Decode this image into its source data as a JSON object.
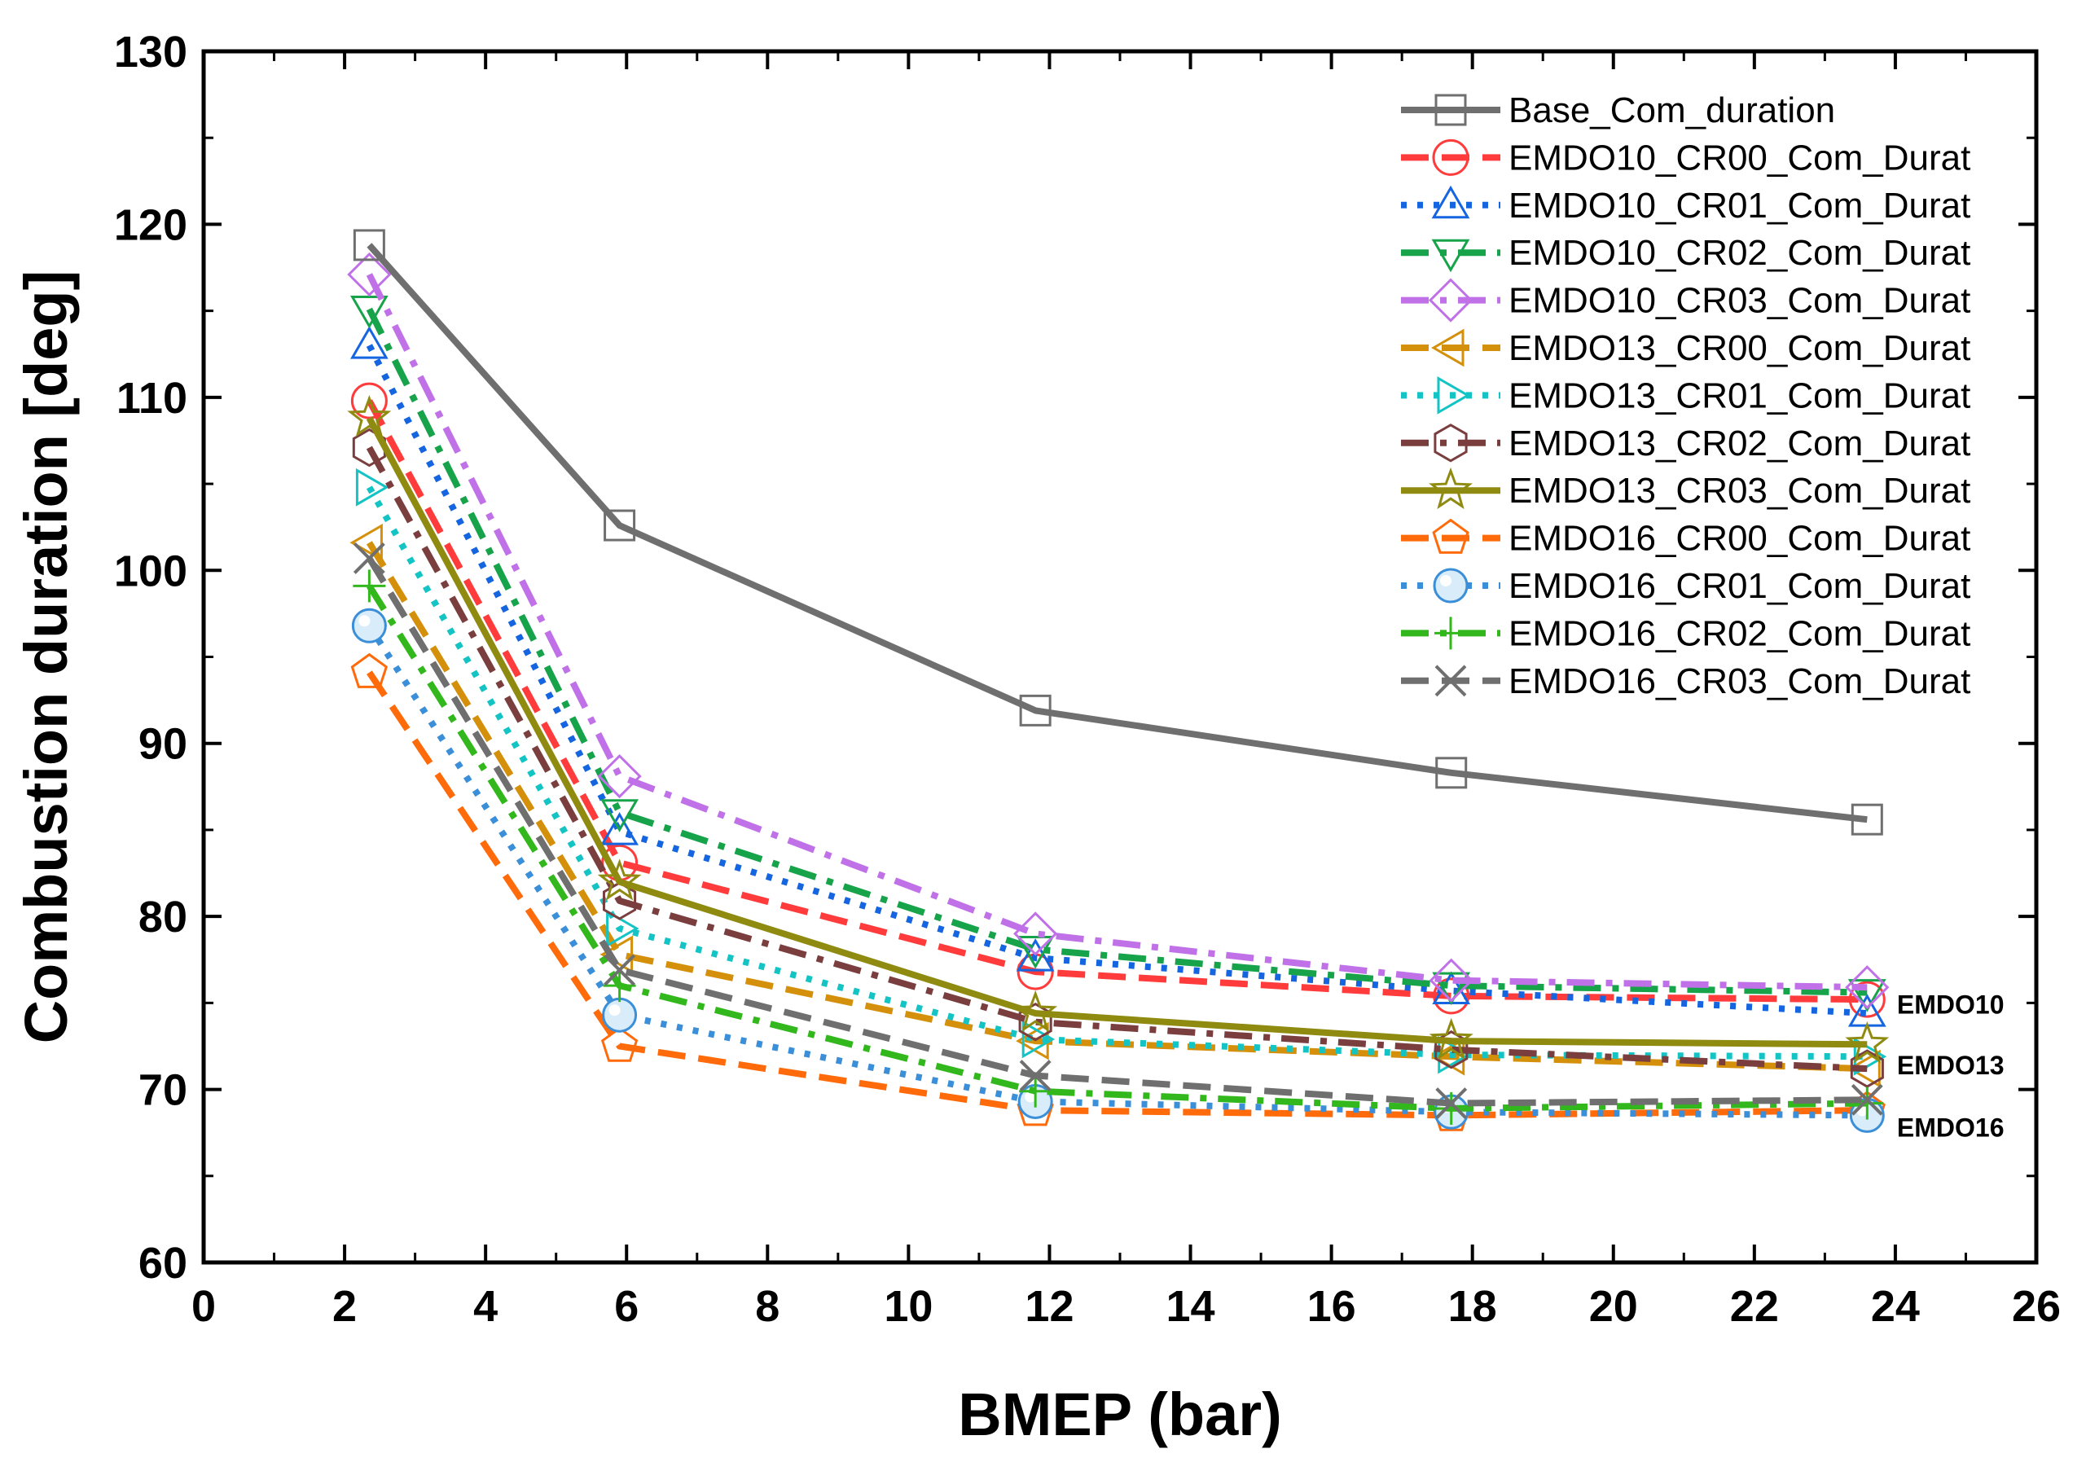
{
  "chart_data": {
    "type": "line",
    "title": "",
    "xlabel": "BMEP (bar)",
    "ylabel": "Combustion duration [deg]",
    "xlim": [
      0,
      26
    ],
    "ylim": [
      60,
      130
    ],
    "xticks": [
      0,
      2,
      4,
      6,
      8,
      10,
      12,
      14,
      16,
      18,
      20,
      22,
      24,
      26
    ],
    "yticks": [
      60,
      70,
      80,
      90,
      100,
      110,
      120,
      130
    ],
    "legend_position": "top-right",
    "x": [
      2.35,
      5.9,
      11.8,
      17.7,
      23.6
    ],
    "series": [
      {
        "name": "Base_Com_duration",
        "values": [
          118.8,
          102.6,
          91.9,
          88.3,
          85.6
        ],
        "color": "#6f6f6f",
        "dash": "solid",
        "marker": "square"
      },
      {
        "name": "EMDO10_CR00_Com_Durat",
        "values": [
          109.8,
          83.1,
          76.8,
          75.4,
          75.2
        ],
        "color": "#ff3b3b",
        "dash": "dash",
        "marker": "circle"
      },
      {
        "name": "EMDO10_CR01_Com_Durat",
        "values": [
          113.0,
          84.9,
          77.6,
          75.7,
          74.4
        ],
        "color": "#1565e0",
        "dash": "dot",
        "marker": "triangle-up"
      },
      {
        "name": "EMDO10_CR02_Com_Durat",
        "values": [
          115.1,
          86.0,
          78.1,
          76.0,
          75.6
        ],
        "color": "#16a34a",
        "dash": "dashdot",
        "marker": "triangle-down"
      },
      {
        "name": "EMDO10_CR03_Com_Durat",
        "values": [
          117.1,
          88.1,
          79.0,
          76.3,
          75.9
        ],
        "color": "#c071e8",
        "dash": "dashdot",
        "marker": "diamond"
      },
      {
        "name": "EMDO13_CR00_Com_Durat",
        "values": [
          101.6,
          77.8,
          72.8,
          71.9,
          71.2
        ],
        "color": "#d4900a",
        "dash": "dash",
        "marker": "triangle-left"
      },
      {
        "name": "EMDO13_CR01_Com_Durat",
        "values": [
          104.8,
          79.3,
          72.9,
          72.0,
          71.9
        ],
        "color": "#14c4c4",
        "dash": "dot",
        "marker": "triangle-right"
      },
      {
        "name": "EMDO13_CR02_Com_Durat",
        "values": [
          107.1,
          80.9,
          73.9,
          72.3,
          71.2
        ],
        "color": "#7a3e3e",
        "dash": "dashdot",
        "marker": "hexagon"
      },
      {
        "name": "EMDO13_CR03_Com_Durat",
        "values": [
          108.8,
          82.0,
          74.4,
          72.8,
          72.6
        ],
        "color": "#8f8a10",
        "dash": "solid",
        "marker": "star"
      },
      {
        "name": "EMDO16_CR00_Com_Durat",
        "values": [
          94.1,
          72.5,
          68.8,
          68.5,
          68.8
        ],
        "color": "#ff6a0a",
        "dash": "dash",
        "marker": "pentagon"
      },
      {
        "name": "EMDO16_CR01_Com_Durat",
        "values": [
          96.8,
          74.3,
          69.3,
          68.7,
          68.5
        ],
        "color": "#3a8fd8",
        "dash": "dot",
        "marker": "sphere"
      },
      {
        "name": "EMDO16_CR02_Com_Durat",
        "values": [
          99.1,
          76.0,
          69.9,
          68.9,
          69.2
        ],
        "color": "#32b81c",
        "dash": "dashdot",
        "marker": "plus"
      },
      {
        "name": "EMDO16_CR03_Com_Durat",
        "values": [
          100.7,
          76.9,
          70.8,
          69.2,
          69.4
        ],
        "color": "#6f6f6f",
        "dash": "dash",
        "marker": "cross"
      }
    ],
    "annotations": [
      {
        "text": "EMDO10",
        "x": 24.0,
        "y": 74.9
      },
      {
        "text": "EMDO13",
        "x": 24.0,
        "y": 71.4
      },
      {
        "text": "EMDO16",
        "x": 24.0,
        "y": 67.8
      }
    ]
  }
}
